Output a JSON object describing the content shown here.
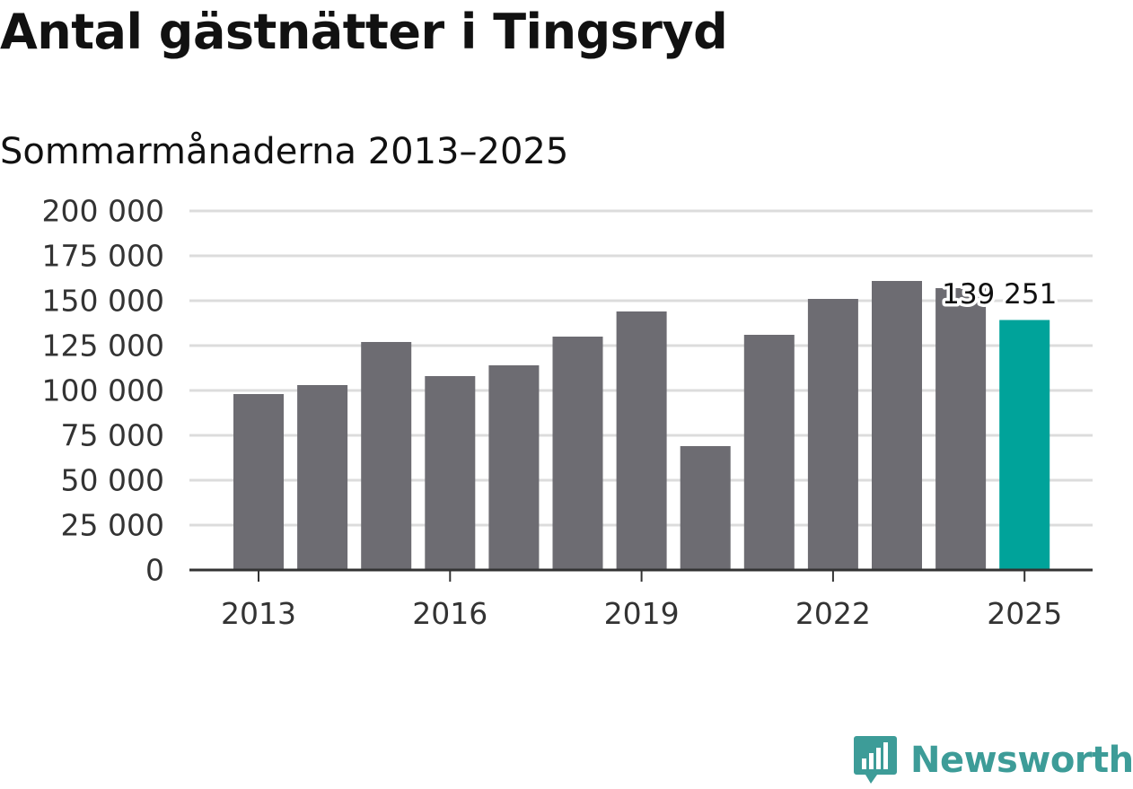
{
  "title": "Antal gästnätter i Tingsryd",
  "subtitle": "Sommarmånaderna 2013–2025",
  "brand": {
    "name": "Newsworthy",
    "icon": "newsworthy-logo-icon"
  },
  "colors": {
    "bar": "#6d6c72",
    "highlight": "#00a39a",
    "grid": "#dcdcdc",
    "axis": "#333333",
    "text": "#333333",
    "brand": "#3d9c98"
  },
  "chart_data": {
    "type": "bar",
    "title": "Antal gästnätter i Tingsryd",
    "subtitle": "Sommarmånaderna 2013–2025",
    "xlabel": "",
    "ylabel": "",
    "categories": [
      "2013",
      "2014",
      "2015",
      "2016",
      "2017",
      "2018",
      "2019",
      "2020",
      "2021",
      "2022",
      "2023",
      "2024",
      "2025"
    ],
    "values": [
      98000,
      103000,
      127000,
      108000,
      114000,
      130000,
      144000,
      69000,
      131000,
      151000,
      161000,
      157000,
      139251
    ],
    "ylim": [
      0,
      200000
    ],
    "yticks": [
      0,
      25000,
      50000,
      75000,
      100000,
      125000,
      150000,
      175000,
      200000
    ],
    "ytick_labels": [
      "0",
      "25 000",
      "50 000",
      "75 000",
      "100 000",
      "125 000",
      "150 000",
      "175 000",
      "200 000"
    ],
    "xticks": [
      "2013",
      "2016",
      "2019",
      "2022",
      "2025"
    ],
    "highlight_index": 12,
    "annotation": {
      "category": "2025",
      "label": "139 251"
    },
    "grid": true,
    "legend": "none"
  }
}
